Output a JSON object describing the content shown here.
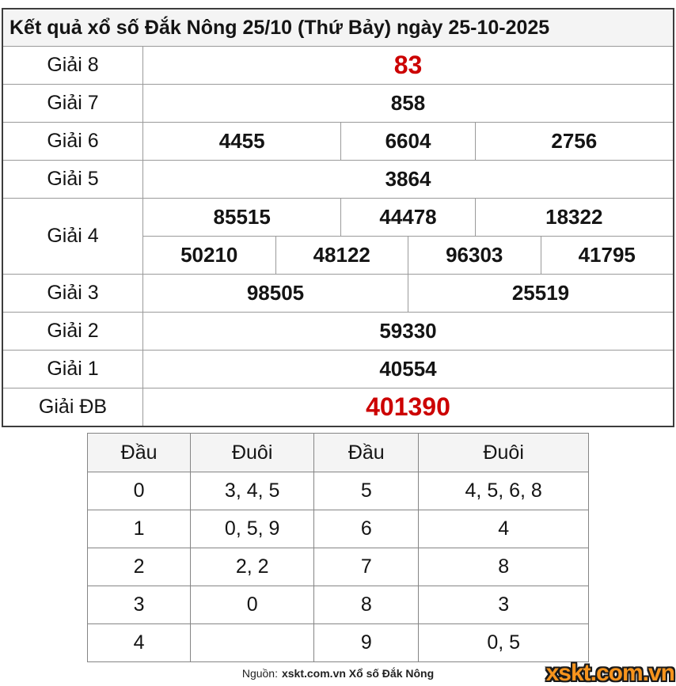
{
  "title": "Kết quả xổ số Đắk Nông 25/10 (Thứ Bảy) ngày 25-10-2025",
  "colors": {
    "highlight_red": "#cc0000",
    "logo_orange": "#f7941d",
    "header_bg": "#f4f4f4"
  },
  "prizes": {
    "g8": {
      "label": "Giải 8",
      "v": "83"
    },
    "g7": {
      "label": "Giải 7",
      "v": "858"
    },
    "g6": {
      "label": "Giải 6",
      "v": [
        "4455",
        "6604",
        "2756"
      ]
    },
    "g5": {
      "label": "Giải 5",
      "v": "3864"
    },
    "g4": {
      "label": "Giải 4",
      "r1": [
        "85515",
        "44478",
        "18322"
      ],
      "r2": [
        "50210",
        "48122",
        "96303",
        "41795"
      ]
    },
    "g3": {
      "label": "Giải 3",
      "v": [
        "98505",
        "25519"
      ]
    },
    "g2": {
      "label": "Giải 2",
      "v": "59330"
    },
    "g1": {
      "label": "Giải 1",
      "v": "40554"
    },
    "gdb": {
      "label": "Giải ĐB",
      "v": "401390"
    }
  },
  "head_tail": {
    "headers": [
      "Đầu",
      "Đuôi",
      "Đầu",
      "Đuôi"
    ],
    "rows": [
      [
        "0",
        "3, 4, 5",
        "5",
        "4, 5, 6, 8"
      ],
      [
        "1",
        "0, 5, 9",
        "6",
        "4"
      ],
      [
        "2",
        "2, 2",
        "7",
        "8"
      ],
      [
        "3",
        "0",
        "8",
        "3"
      ],
      [
        "4",
        "",
        "9",
        "0, 5"
      ]
    ]
  },
  "footer": {
    "source_prefix": "Nguồn:",
    "source_bold": "xskt.com.vn Xổ số Đắk Nông"
  },
  "logo": {
    "text": "xskt.com.vn"
  }
}
